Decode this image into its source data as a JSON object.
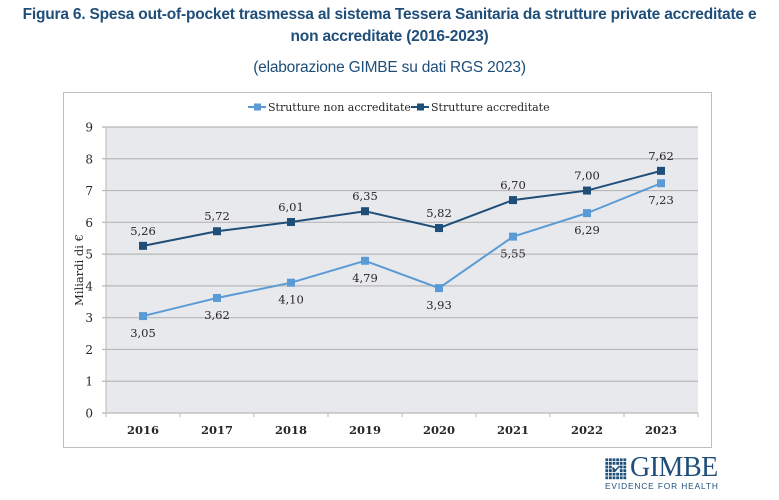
{
  "figure": {
    "title_line1": "Figura 6. Spesa out-of-pocket trasmessa al sistema Tessera Sanitaria da strutture private accreditate e",
    "title_line2": "non accreditate (2016-2023)",
    "subtitle": "(elaborazione GIMBE su dati RGS 2023)"
  },
  "logo": {
    "name": "GIMBE",
    "tagline": "EVIDENCE FOR HEALTH",
    "icon": "grid-logo-icon"
  },
  "chart_data": {
    "type": "line",
    "title": "",
    "xlabel": "",
    "ylabel": "Miliardi di €",
    "categories": [
      "2016",
      "2017",
      "2018",
      "2019",
      "2020",
      "2021",
      "2022",
      "2023"
    ],
    "ylim": [
      0,
      9
    ],
    "yticks": [
      "0",
      "1",
      "2",
      "3",
      "4",
      "5",
      "6",
      "7",
      "8",
      "9"
    ],
    "grid": true,
    "legend_position": "top-center",
    "series": [
      {
        "name": "Strutture non accreditate",
        "color": "#5b9bd5",
        "values": [
          3.05,
          3.62,
          4.1,
          4.79,
          3.93,
          5.55,
          6.29,
          7.23
        ],
        "labels": [
          "3,05",
          "3,62",
          "4,10",
          "4,79",
          "3,93",
          "5,55",
          "6,29",
          "7,23"
        ],
        "label_position": "below"
      },
      {
        "name": "Strutture accreditate",
        "color": "#1f4e79",
        "values": [
          5.26,
          5.72,
          6.01,
          6.35,
          5.82,
          6.7,
          7.0,
          7.62
        ],
        "labels": [
          "5,26",
          "5,72",
          "6,01",
          "6,35",
          "5,82",
          "6,70",
          "7,00",
          "7,62"
        ],
        "label_position": "above"
      }
    ]
  }
}
